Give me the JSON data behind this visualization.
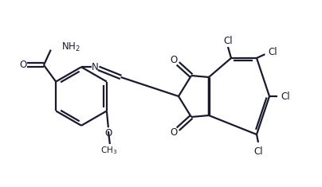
{
  "bg_color": "#ffffff",
  "line_color": "#1a1a2e",
  "line_width": 1.6,
  "figsize": [
    4.04,
    2.35
  ],
  "dpi": 100,
  "xlim": [
    0,
    10.1
  ],
  "ylim": [
    0,
    5.875
  ]
}
